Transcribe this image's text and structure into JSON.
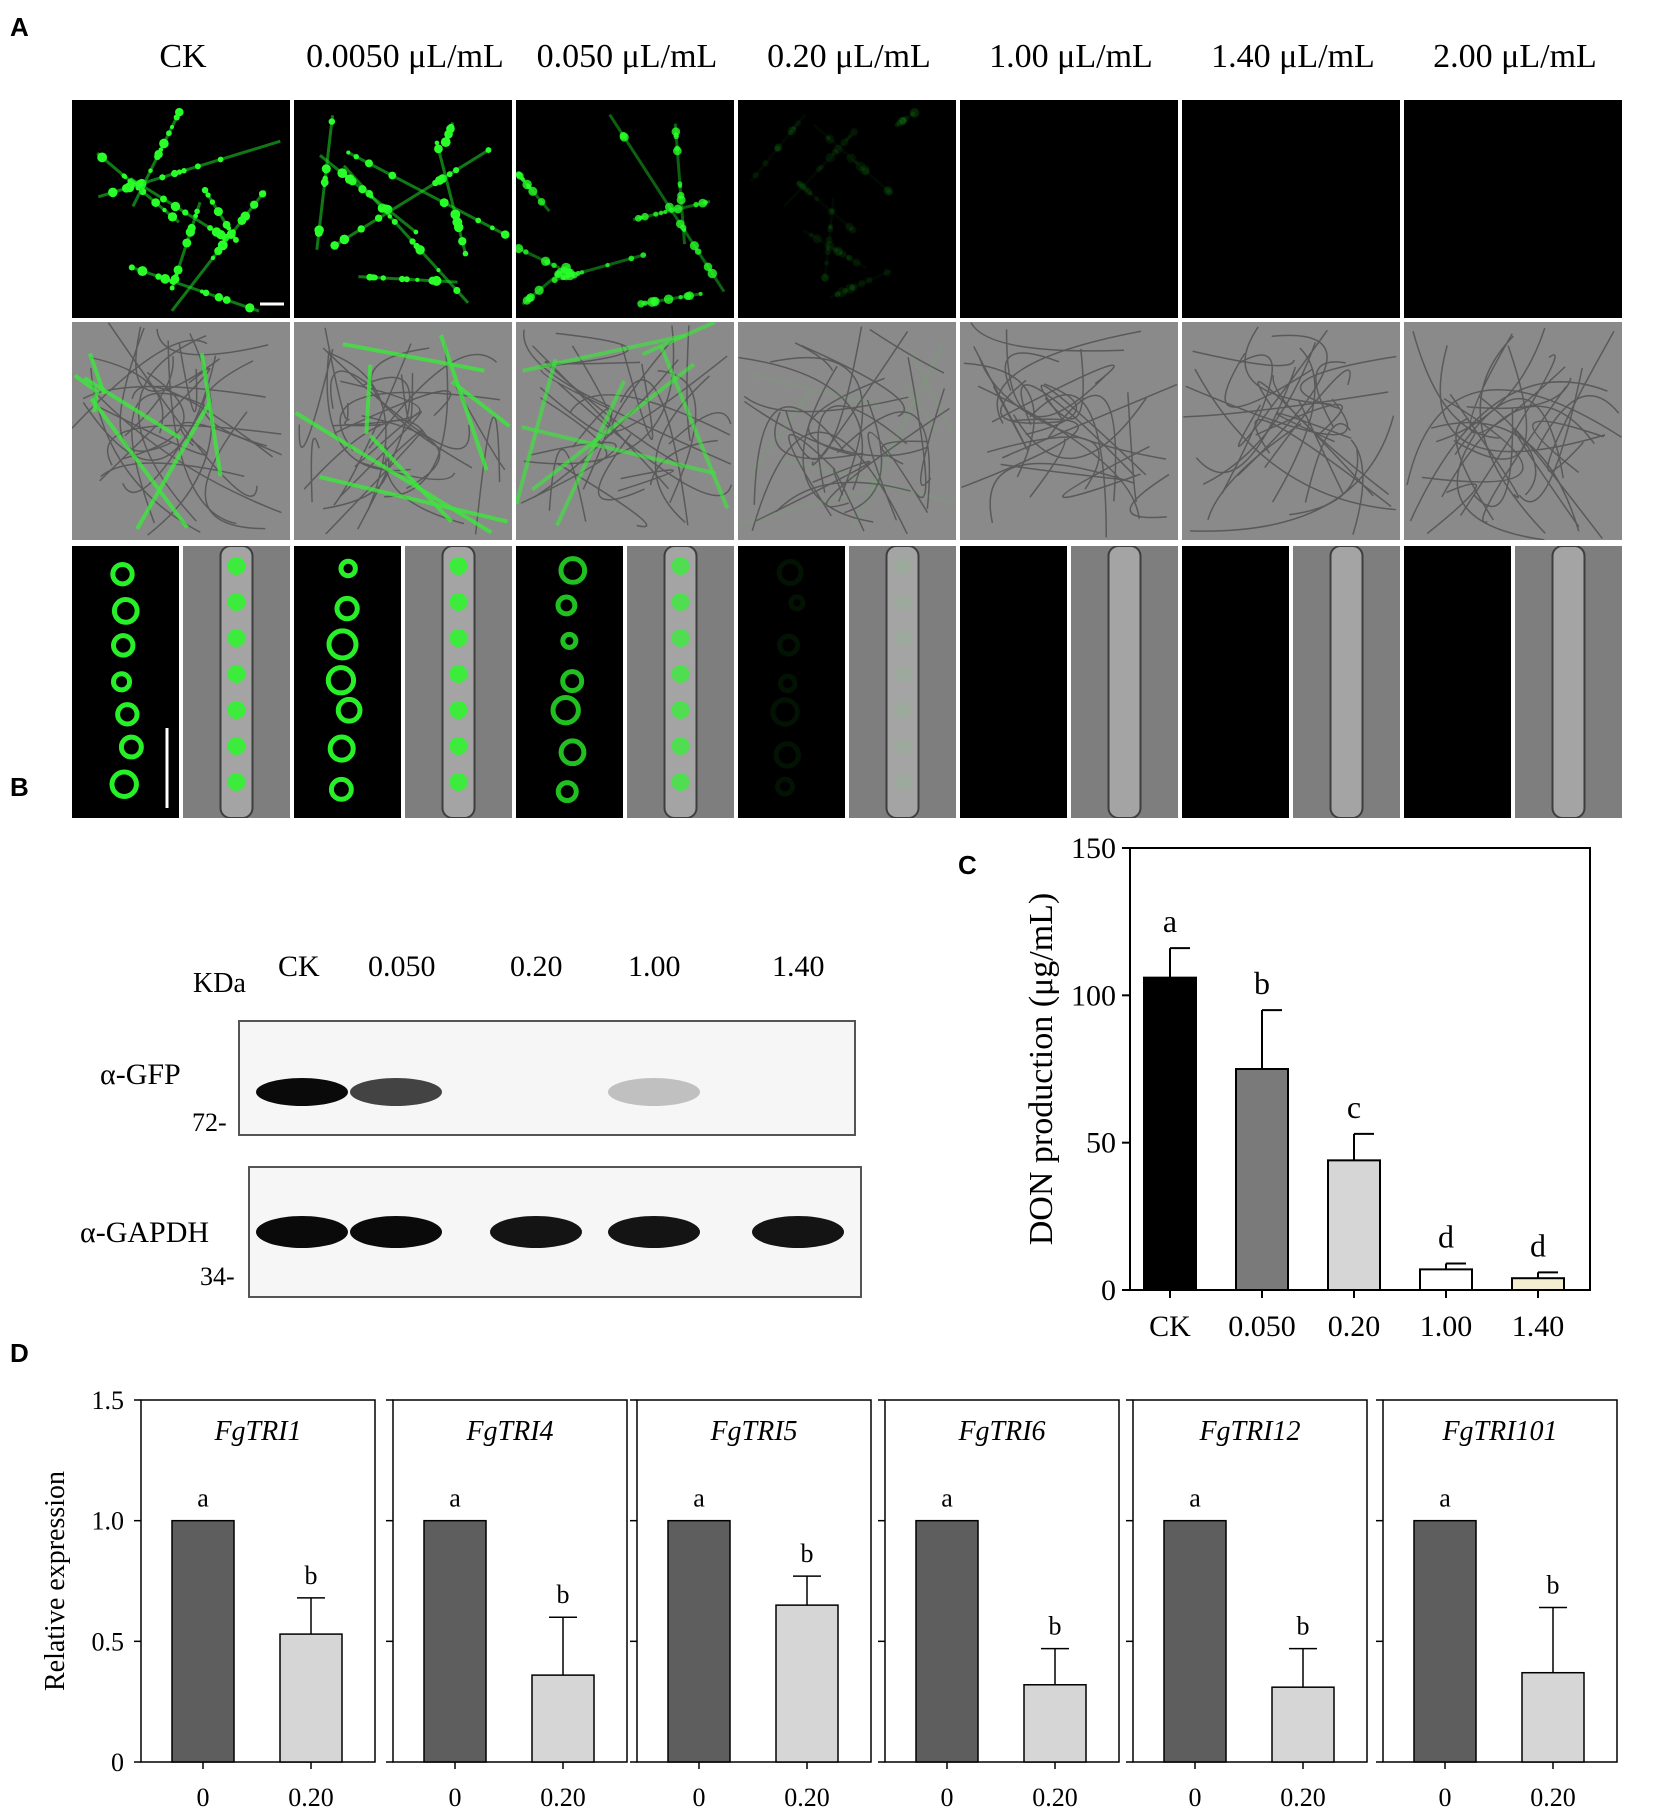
{
  "panels": {
    "A": "A",
    "B": "B",
    "C": "C",
    "D": "D"
  },
  "panel_a": {
    "concentrations": [
      "CK",
      "0.0050 μL/mL",
      "0.050 μL/mL",
      "0.20 μL/mL",
      "1.00 μL/mL",
      "1.40 μL/mL",
      "2.00 μL/mL"
    ],
    "gfp_intensity": [
      1.0,
      1.0,
      0.8,
      0.08,
      0,
      0,
      0
    ]
  },
  "panel_b": {
    "kda_label": "KDa",
    "lanes": [
      "CK",
      "0.050",
      "0.20",
      "1.00",
      "1.40"
    ],
    "blots": [
      {
        "antibody": "α-GFP",
        "marker": "72-",
        "band_intensity": [
          1.0,
          0.7,
          0.0,
          0.04,
          0.0
        ]
      },
      {
        "antibody": "α-GAPDH",
        "marker": "34-",
        "band_intensity": [
          1.0,
          1.0,
          0.95,
          0.95,
          0.95
        ]
      }
    ]
  },
  "chart_data": [
    {
      "type": "bar",
      "ylabel": "DON production (μg/mL)",
      "categories": [
        "CK",
        "0.050",
        "0.20",
        "1.00",
        "1.40"
      ],
      "values": [
        106,
        75,
        44,
        7,
        4
      ],
      "errors": [
        10,
        20,
        9,
        2,
        2
      ],
      "significance": [
        "a",
        "b",
        "c",
        "d",
        "d"
      ],
      "colors": [
        "#000000",
        "#7a7a7a",
        "#d6d6d6",
        "#ffffff",
        "#f3eed0"
      ],
      "ylim": [
        0,
        150
      ],
      "yticks": [
        "0",
        "50",
        "100",
        "150"
      ]
    },
    {
      "type": "bar",
      "ylabel": "Relative expression",
      "ylim": [
        0,
        1.5
      ],
      "yticks": [
        "0",
        "0.5",
        "1.0",
        "1.5"
      ],
      "categories": [
        "0",
        "0.20"
      ],
      "colors": [
        "#5e5e5e",
        "#d6d6d6"
      ],
      "genes": [
        {
          "name": "FgTRI1",
          "values": [
            1.0,
            0.53
          ],
          "errors": [
            0,
            0.15
          ],
          "significance": [
            "a",
            "b"
          ]
        },
        {
          "name": "FgTRI4",
          "values": [
            1.0,
            0.36
          ],
          "errors": [
            0,
            0.24
          ],
          "significance": [
            "a",
            "b"
          ]
        },
        {
          "name": "FgTRI5",
          "values": [
            1.0,
            0.65
          ],
          "errors": [
            0,
            0.12
          ],
          "significance": [
            "a",
            "b"
          ]
        },
        {
          "name": "FgTRI6",
          "values": [
            1.0,
            0.32
          ],
          "errors": [
            0,
            0.15
          ],
          "significance": [
            "a",
            "b"
          ]
        },
        {
          "name": "FgTRI12",
          "values": [
            1.0,
            0.31
          ],
          "errors": [
            0,
            0.16
          ],
          "significance": [
            "a",
            "b"
          ]
        },
        {
          "name": "FgTRI101",
          "values": [
            1.0,
            0.37
          ],
          "errors": [
            0,
            0.27
          ],
          "significance": [
            "a",
            "b"
          ]
        }
      ]
    }
  ]
}
